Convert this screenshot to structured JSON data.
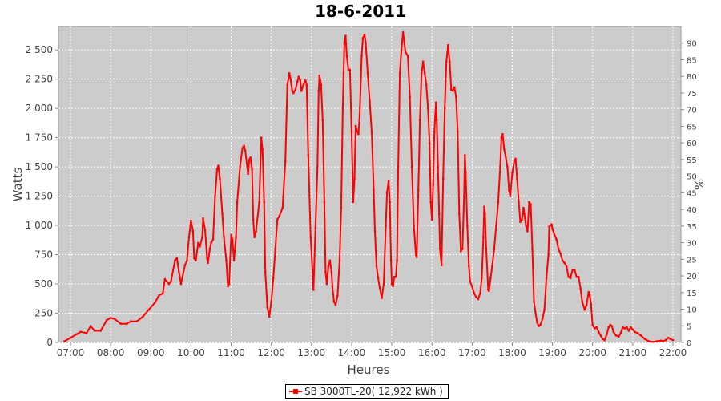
{
  "chart_data": {
    "type": "line",
    "title": "18-6-2011",
    "xlabel": "Heures",
    "ylabel": "Watts",
    "ylabel_right": "%",
    "x_ticks": [
      "07:00",
      "08:00",
      "09:00",
      "10:00",
      "11:00",
      "12:00",
      "13:00",
      "14:00",
      "15:00",
      "16:00",
      "17:00",
      "18:00",
      "19:00",
      "20:00",
      "21:00",
      "22:00"
    ],
    "y_ticks": [
      "0",
      "250",
      "500",
      "750",
      "1 000",
      "1 250",
      "1 500",
      "1 750",
      "2 000",
      "2 250",
      "2 500"
    ],
    "y2_ticks": [
      "0",
      "5",
      "10",
      "15",
      "20",
      "25",
      "30",
      "35",
      "40",
      "45",
      "50",
      "55",
      "60",
      "65",
      "70",
      "75",
      "80",
      "85",
      "90"
    ],
    "xlim_hours": [
      6.7,
      22.2
    ],
    "ylim": [
      0,
      2700
    ],
    "y2lim": [
      0,
      95
    ],
    "grid": true,
    "legend_position": "bottom",
    "background": "#cccccc",
    "series": [
      {
        "name": "SB 3000TL-20( 12,922 kWh )",
        "color": "#ff0000",
        "points": [
          [
            6.85,
            10
          ],
          [
            7.0,
            40
          ],
          [
            7.15,
            70
          ],
          [
            7.25,
            90
          ],
          [
            7.4,
            80
          ],
          [
            7.5,
            140
          ],
          [
            7.6,
            100
          ],
          [
            7.75,
            100
          ],
          [
            7.9,
            190
          ],
          [
            8.0,
            210
          ],
          [
            8.1,
            200
          ],
          [
            8.25,
            160
          ],
          [
            8.4,
            160
          ],
          [
            8.5,
            180
          ],
          [
            8.65,
            180
          ],
          [
            8.8,
            220
          ],
          [
            8.95,
            280
          ],
          [
            9.1,
            340
          ],
          [
            9.2,
            400
          ],
          [
            9.3,
            420
          ],
          [
            9.35,
            540
          ],
          [
            9.45,
            500
          ],
          [
            9.5,
            520
          ],
          [
            9.6,
            700
          ],
          [
            9.65,
            720
          ],
          [
            9.7,
            600
          ],
          [
            9.75,
            500
          ],
          [
            9.85,
            660
          ],
          [
            9.9,
            700
          ],
          [
            9.95,
            900
          ],
          [
            10.0,
            1040
          ],
          [
            10.05,
            950
          ],
          [
            10.08,
            720
          ],
          [
            10.12,
            700
          ],
          [
            10.18,
            850
          ],
          [
            10.22,
            820
          ],
          [
            10.28,
            900
          ],
          [
            10.3,
            1060
          ],
          [
            10.35,
            960
          ],
          [
            10.4,
            720
          ],
          [
            10.42,
            680
          ],
          [
            10.47,
            800
          ],
          [
            10.5,
            850
          ],
          [
            10.55,
            880
          ],
          [
            10.6,
            1250
          ],
          [
            10.65,
            1480
          ],
          [
            10.68,
            1510
          ],
          [
            10.72,
            1400
          ],
          [
            10.78,
            1100
          ],
          [
            10.82,
            900
          ],
          [
            10.88,
            700
          ],
          [
            10.92,
            480
          ],
          [
            10.95,
            500
          ],
          [
            11.0,
            920
          ],
          [
            11.03,
            880
          ],
          [
            11.07,
            700
          ],
          [
            11.12,
            900
          ],
          [
            11.15,
            1200
          ],
          [
            11.22,
            1500
          ],
          [
            11.28,
            1660
          ],
          [
            11.32,
            1680
          ],
          [
            11.35,
            1640
          ],
          [
            11.4,
            1500
          ],
          [
            11.42,
            1440
          ],
          [
            11.45,
            1560
          ],
          [
            11.48,
            1580
          ],
          [
            11.52,
            1480
          ],
          [
            11.55,
            1050
          ],
          [
            11.58,
            900
          ],
          [
            11.62,
            950
          ],
          [
            11.7,
            1200
          ],
          [
            11.75,
            1750
          ],
          [
            11.78,
            1650
          ],
          [
            11.82,
            1200
          ],
          [
            11.85,
            600
          ],
          [
            11.9,
            300
          ],
          [
            11.95,
            220
          ],
          [
            12.0,
            350
          ],
          [
            12.05,
            550
          ],
          [
            12.1,
            800
          ],
          [
            12.15,
            1050
          ],
          [
            12.2,
            1080
          ],
          [
            12.28,
            1150
          ],
          [
            12.35,
            1550
          ],
          [
            12.4,
            2200
          ],
          [
            12.45,
            2300
          ],
          [
            12.48,
            2250
          ],
          [
            12.52,
            2150
          ],
          [
            12.55,
            2130
          ],
          [
            12.6,
            2160
          ],
          [
            12.65,
            2230
          ],
          [
            12.68,
            2270
          ],
          [
            12.72,
            2240
          ],
          [
            12.75,
            2150
          ],
          [
            12.8,
            2200
          ],
          [
            12.85,
            2240
          ],
          [
            12.88,
            2200
          ],
          [
            12.92,
            1600
          ],
          [
            12.98,
            900
          ],
          [
            13.05,
            450
          ],
          [
            13.1,
            980
          ],
          [
            13.15,
            1500
          ],
          [
            13.18,
            2150
          ],
          [
            13.2,
            2280
          ],
          [
            13.24,
            2200
          ],
          [
            13.28,
            1900
          ],
          [
            13.32,
            1200
          ],
          [
            13.35,
            600
          ],
          [
            13.38,
            500
          ],
          [
            13.42,
            650
          ],
          [
            13.46,
            700
          ],
          [
            13.5,
            600
          ],
          [
            13.52,
            480
          ],
          [
            13.56,
            350
          ],
          [
            13.6,
            320
          ],
          [
            13.65,
            400
          ],
          [
            13.7,
            700
          ],
          [
            13.74,
            1150
          ],
          [
            13.78,
            2000
          ],
          [
            13.8,
            2300
          ],
          [
            13.82,
            2560
          ],
          [
            13.85,
            2620
          ],
          [
            13.88,
            2450
          ],
          [
            13.92,
            2330
          ],
          [
            13.96,
            2330
          ],
          [
            14.0,
            1800
          ],
          [
            14.04,
            1200
          ],
          [
            14.07,
            1400
          ],
          [
            14.1,
            1850
          ],
          [
            14.14,
            1800
          ],
          [
            14.17,
            1780
          ],
          [
            14.2,
            1950
          ],
          [
            14.25,
            2450
          ],
          [
            14.28,
            2600
          ],
          [
            14.32,
            2630
          ],
          [
            14.35,
            2560
          ],
          [
            14.4,
            2300
          ],
          [
            14.45,
            2060
          ],
          [
            14.5,
            1800
          ],
          [
            14.55,
            1300
          ],
          [
            14.58,
            950
          ],
          [
            14.62,
            650
          ],
          [
            14.66,
            550
          ],
          [
            14.7,
            470
          ],
          [
            14.75,
            380
          ],
          [
            14.8,
            500
          ],
          [
            14.85,
            1000
          ],
          [
            14.88,
            1280
          ],
          [
            14.92,
            1380
          ],
          [
            14.95,
            1200
          ],
          [
            14.98,
            700
          ],
          [
            15.0,
            500
          ],
          [
            15.03,
            480
          ],
          [
            15.06,
            560
          ],
          [
            15.1,
            560
          ],
          [
            15.13,
            700
          ],
          [
            15.16,
            1500
          ],
          [
            15.2,
            2300
          ],
          [
            15.24,
            2500
          ],
          [
            15.28,
            2650
          ],
          [
            15.3,
            2600
          ],
          [
            15.34,
            2480
          ],
          [
            15.4,
            2450
          ],
          [
            15.45,
            2100
          ],
          [
            15.5,
            1500
          ],
          [
            15.55,
            1000
          ],
          [
            15.6,
            750
          ],
          [
            15.62,
            730
          ],
          [
            15.66,
            1300
          ],
          [
            15.7,
            1900
          ],
          [
            15.74,
            2300
          ],
          [
            15.78,
            2400
          ],
          [
            15.82,
            2300
          ],
          [
            15.86,
            2200
          ],
          [
            15.9,
            2000
          ],
          [
            15.94,
            1700
          ],
          [
            15.97,
            1200
          ],
          [
            16.0,
            1050
          ],
          [
            16.03,
            1350
          ],
          [
            16.06,
            1800
          ],
          [
            16.1,
            2050
          ],
          [
            16.12,
            1900
          ],
          [
            16.15,
            1500
          ],
          [
            16.18,
            1100
          ],
          [
            16.2,
            800
          ],
          [
            16.24,
            660
          ],
          [
            16.28,
            1400
          ],
          [
            16.32,
            2000
          ],
          [
            16.36,
            2400
          ],
          [
            16.4,
            2540
          ],
          [
            16.44,
            2400
          ],
          [
            16.48,
            2160
          ],
          [
            16.52,
            2150
          ],
          [
            16.56,
            2180
          ],
          [
            16.6,
            2100
          ],
          [
            16.64,
            1800
          ],
          [
            16.68,
            1100
          ],
          [
            16.72,
            780
          ],
          [
            16.76,
            800
          ],
          [
            16.8,
            1250
          ],
          [
            16.82,
            1600
          ],
          [
            16.84,
            1450
          ],
          [
            16.88,
            1000
          ],
          [
            16.92,
            650
          ],
          [
            16.95,
            520
          ],
          [
            17.0,
            480
          ],
          [
            17.05,
            420
          ],
          [
            17.1,
            390
          ],
          [
            17.15,
            370
          ],
          [
            17.2,
            420
          ],
          [
            17.24,
            550
          ],
          [
            17.28,
            900
          ],
          [
            17.3,
            1160
          ],
          [
            17.32,
            1100
          ],
          [
            17.35,
            800
          ],
          [
            17.4,
            450
          ],
          [
            17.42,
            440
          ],
          [
            17.46,
            550
          ],
          [
            17.5,
            650
          ],
          [
            17.55,
            800
          ],
          [
            17.6,
            1000
          ],
          [
            17.65,
            1200
          ],
          [
            17.7,
            1500
          ],
          [
            17.73,
            1750
          ],
          [
            17.76,
            1780
          ],
          [
            17.8,
            1650
          ],
          [
            17.84,
            1580
          ],
          [
            17.88,
            1500
          ],
          [
            17.92,
            1300
          ],
          [
            17.95,
            1250
          ],
          [
            18.0,
            1450
          ],
          [
            18.05,
            1550
          ],
          [
            18.08,
            1570
          ],
          [
            18.12,
            1400
          ],
          [
            18.16,
            1200
          ],
          [
            18.2,
            1030
          ],
          [
            18.24,
            1050
          ],
          [
            18.28,
            1150
          ],
          [
            18.3,
            1100
          ],
          [
            18.34,
            1000
          ],
          [
            18.38,
            950
          ],
          [
            18.42,
            1200
          ],
          [
            18.46,
            1180
          ],
          [
            18.5,
            800
          ],
          [
            18.54,
            350
          ],
          [
            18.58,
            250
          ],
          [
            18.62,
            170
          ],
          [
            18.66,
            140
          ],
          [
            18.7,
            150
          ],
          [
            18.75,
            200
          ],
          [
            18.8,
            280
          ],
          [
            18.85,
            550
          ],
          [
            18.9,
            750
          ],
          [
            18.92,
            990
          ],
          [
            18.95,
            1000
          ],
          [
            18.98,
            1010
          ],
          [
            19.0,
            970
          ],
          [
            19.05,
            920
          ],
          [
            19.1,
            880
          ],
          [
            19.15,
            800
          ],
          [
            19.2,
            760
          ],
          [
            19.25,
            700
          ],
          [
            19.3,
            680
          ],
          [
            19.35,
            650
          ],
          [
            19.4,
            560
          ],
          [
            19.45,
            550
          ],
          [
            19.5,
            620
          ],
          [
            19.55,
            620
          ],
          [
            19.6,
            560
          ],
          [
            19.65,
            560
          ],
          [
            19.7,
            460
          ],
          [
            19.74,
            350
          ],
          [
            19.8,
            280
          ],
          [
            19.85,
            320
          ],
          [
            19.9,
            430
          ],
          [
            19.93,
            400
          ],
          [
            19.96,
            330
          ],
          [
            20.0,
            150
          ],
          [
            20.05,
            120
          ],
          [
            20.1,
            130
          ],
          [
            20.15,
            90
          ],
          [
            20.2,
            60
          ],
          [
            20.25,
            30
          ],
          [
            20.3,
            20
          ],
          [
            20.35,
            70
          ],
          [
            20.4,
            130
          ],
          [
            20.44,
            150
          ],
          [
            20.48,
            140
          ],
          [
            20.52,
            90
          ],
          [
            20.58,
            60
          ],
          [
            20.65,
            50
          ],
          [
            20.7,
            80
          ],
          [
            20.75,
            130
          ],
          [
            20.8,
            120
          ],
          [
            20.85,
            130
          ],
          [
            20.9,
            100
          ],
          [
            20.95,
            130
          ],
          [
            21.0,
            110
          ],
          [
            21.05,
            90
          ],
          [
            21.12,
            80
          ],
          [
            21.2,
            60
          ],
          [
            21.3,
            30
          ],
          [
            21.4,
            10
          ],
          [
            21.5,
            5
          ],
          [
            21.6,
            10
          ],
          [
            21.7,
            15
          ],
          [
            21.75,
            10
          ],
          [
            21.82,
            20
          ],
          [
            21.88,
            40
          ],
          [
            21.94,
            30
          ],
          [
            22.0,
            20
          ]
        ]
      }
    ]
  }
}
